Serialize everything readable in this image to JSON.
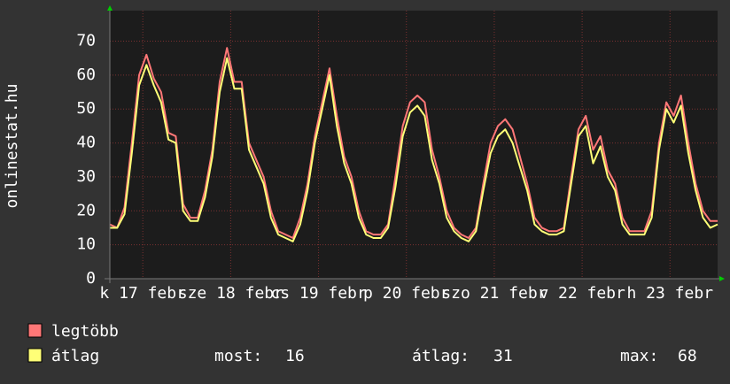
{
  "chart_data": {
    "type": "line",
    "ylabel": "onlinestat.hu",
    "xlim": [
      0,
      83
    ],
    "ylim": [
      0,
      79
    ],
    "yticks": [
      0,
      10,
      20,
      30,
      40,
      50,
      60,
      70
    ],
    "grid": true,
    "xticks": [
      {
        "value": 4.5,
        "label": "k 17 febr"
      },
      {
        "value": 16.5,
        "label": "sze 18 febr"
      },
      {
        "value": 28.5,
        "label": "cs 19 febr"
      },
      {
        "value": 40.5,
        "label": "p 20 febr"
      },
      {
        "value": 52.5,
        "label": "szo 21 febr"
      },
      {
        "value": 64.5,
        "label": "v 22 febr"
      },
      {
        "value": 76.5,
        "label": "h 23 febr"
      }
    ],
    "series": [
      {
        "name": "legtöbb",
        "color": "#ff7777",
        "values": [
          16,
          15,
          21,
          40,
          60,
          66,
          59,
          55,
          43,
          42,
          22,
          18,
          18,
          26,
          38,
          58,
          68,
          58,
          58,
          40,
          35,
          30,
          20,
          14,
          13,
          12,
          18,
          28,
          42,
          52,
          62,
          48,
          36,
          30,
          20,
          14,
          13,
          13,
          16,
          30,
          45,
          52,
          54,
          52,
          38,
          30,
          20,
          15,
          13,
          12,
          15,
          28,
          40,
          45,
          47,
          44,
          36,
          28,
          18,
          15,
          14,
          14,
          15,
          30,
          44,
          48,
          38,
          42,
          32,
          28,
          18,
          14,
          14,
          14,
          20,
          40,
          52,
          48,
          54,
          40,
          28,
          20,
          17,
          17
        ]
      },
      {
        "name": "átlag",
        "color": "#ffff77",
        "values": [
          15,
          15,
          19,
          37,
          57,
          63,
          57,
          52,
          41,
          40,
          20,
          17,
          17,
          24,
          36,
          55,
          65,
          56,
          56,
          38,
          33,
          28,
          18,
          13,
          12,
          11,
          16,
          26,
          40,
          50,
          60,
          45,
          34,
          28,
          18,
          13,
          12,
          12,
          15,
          27,
          42,
          49,
          51,
          48,
          35,
          28,
          18,
          14,
          12,
          11,
          14,
          26,
          37,
          42,
          44,
          40,
          33,
          26,
          16,
          14,
          13,
          13,
          14,
          28,
          42,
          45,
          34,
          39,
          30,
          26,
          16,
          13,
          13,
          13,
          18,
          38,
          50,
          46,
          51,
          37,
          26,
          18,
          15,
          16
        ]
      }
    ],
    "stats": [
      {
        "label": "most:",
        "value": 16
      },
      {
        "label": "átlag:",
        "value": 31
      },
      {
        "label": "max:",
        "value": 68
      }
    ]
  }
}
